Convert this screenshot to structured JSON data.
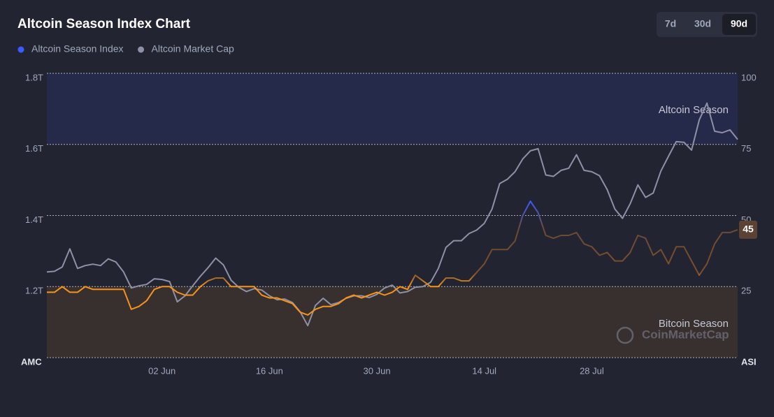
{
  "chart_data": {
    "type": "line",
    "title": "Altcoin Season Index Chart",
    "range_options": [
      "7d",
      "30d",
      "90d"
    ],
    "selected_range": "90d",
    "ylabel": "AMC",
    "y2label": "ASI",
    "watermark": "CoinMarketCap",
    "ylim": [
      1.0,
      1.8
    ],
    "yticks": [
      {
        "value": 1.2,
        "label": "1.2T"
      },
      {
        "value": 1.4,
        "label": "1.4T"
      },
      {
        "value": 1.6,
        "label": "1.6T"
      },
      {
        "value": 1.8,
        "label": "1.8T"
      }
    ],
    "y2lim": [
      0,
      100
    ],
    "y2ticks": [
      25,
      50,
      75,
      100
    ],
    "grid": true,
    "zones": [
      {
        "label": "Altcoin Season",
        "range": [
          75,
          100
        ],
        "color": "#262a4a"
      },
      {
        "label": "Bitcoin Season",
        "range": [
          0,
          25
        ],
        "color": "#38302f"
      }
    ],
    "categories": [
      null,
      null,
      null,
      null,
      null,
      null,
      null,
      null,
      null,
      null,
      null,
      null,
      null,
      null,
      null,
      "02 Jun",
      null,
      null,
      null,
      null,
      null,
      null,
      null,
      null,
      null,
      null,
      null,
      null,
      null,
      "16 Jun",
      null,
      null,
      null,
      null,
      null,
      null,
      null,
      null,
      null,
      null,
      null,
      null,
      null,
      "30 Jun",
      null,
      null,
      null,
      null,
      null,
      null,
      null,
      null,
      null,
      null,
      null,
      null,
      null,
      "14 Jul",
      null,
      null,
      null,
      null,
      null,
      null,
      null,
      null,
      null,
      null,
      null,
      null,
      null,
      "28 Jul",
      null,
      null,
      null,
      null,
      null,
      null,
      null,
      null,
      null,
      null,
      null,
      null,
      null,
      null,
      null,
      null,
      null,
      null,
      null
    ],
    "series": [
      {
        "name": "Altcoin Season Index",
        "color": "#3d5afe",
        "axis": "y2",
        "values": [
          23,
          23,
          25,
          23,
          23,
          25,
          24,
          24,
          24,
          24,
          24,
          17,
          18,
          20,
          24,
          25,
          25,
          23,
          22,
          22,
          25,
          27,
          28,
          28,
          25,
          25,
          25,
          25,
          22,
          21,
          21,
          20,
          19,
          16,
          15,
          17,
          18,
          18,
          19,
          21,
          22,
          21,
          22,
          23,
          22,
          23,
          25,
          24,
          29,
          27,
          25,
          25,
          28,
          28,
          27,
          27,
          30,
          33,
          38,
          38,
          38,
          41,
          50,
          55,
          51,
          43,
          42,
          43,
          43,
          44,
          40,
          39,
          36,
          37,
          34,
          34,
          37,
          43,
          42,
          36,
          38,
          33,
          39,
          39,
          34,
          29,
          33,
          40,
          44,
          44,
          45
        ]
      },
      {
        "name": "Altcoin Market Cap",
        "color": "#8e91a6",
        "values": [
          1.241,
          1.243,
          1.255,
          1.306,
          1.251,
          1.259,
          1.263,
          1.259,
          1.278,
          1.269,
          1.241,
          1.196,
          1.202,
          1.206,
          1.222,
          1.22,
          1.214,
          1.157,
          1.174,
          1.202,
          1.229,
          1.253,
          1.28,
          1.261,
          1.218,
          1.198,
          1.186,
          1.194,
          1.19,
          1.174,
          1.163,
          1.165,
          1.155,
          1.129,
          1.09,
          1.147,
          1.167,
          1.149,
          1.155,
          1.167,
          1.174,
          1.174,
          1.169,
          1.178,
          1.196,
          1.204,
          1.182,
          1.186,
          1.198,
          1.2,
          1.212,
          1.251,
          1.31,
          1.329,
          1.329,
          1.349,
          1.359,
          1.378,
          1.418,
          1.49,
          1.502,
          1.523,
          1.559,
          1.582,
          1.588,
          1.514,
          1.51,
          1.527,
          1.533,
          1.571,
          1.527,
          1.523,
          1.512,
          1.473,
          1.418,
          1.392,
          1.433,
          1.486,
          1.451,
          1.463,
          1.525,
          1.567,
          1.608,
          1.606,
          1.584,
          1.669,
          1.716,
          1.637,
          1.633,
          1.641,
          1.614
        ]
      }
    ]
  }
}
